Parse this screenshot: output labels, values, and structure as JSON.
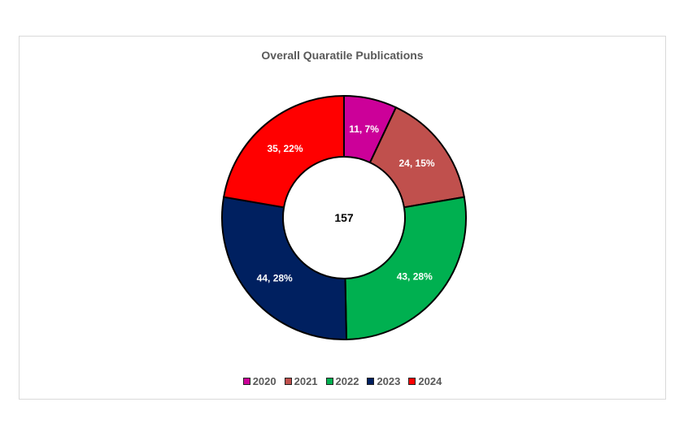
{
  "chart_data": {
    "type": "pie",
    "title": "Overall Quaratile Publications",
    "center_label": "157",
    "slices": [
      {
        "label": "2020",
        "value": 11,
        "data_label": "11, 7%",
        "color": "#cc0099"
      },
      {
        "label": "2021",
        "value": 24,
        "data_label": "24, 15%",
        "color": "#c0504d"
      },
      {
        "label": "2022",
        "value": 43,
        "data_label": "43, 28%",
        "color": "#00b050"
      },
      {
        "label": "2023",
        "value": 44,
        "data_label": "44, 28%",
        "color": "#002060"
      },
      {
        "label": "2024",
        "value": 35,
        "data_label": "35, 22%",
        "color": "#ff0000"
      }
    ],
    "legend_position": "bottom"
  }
}
